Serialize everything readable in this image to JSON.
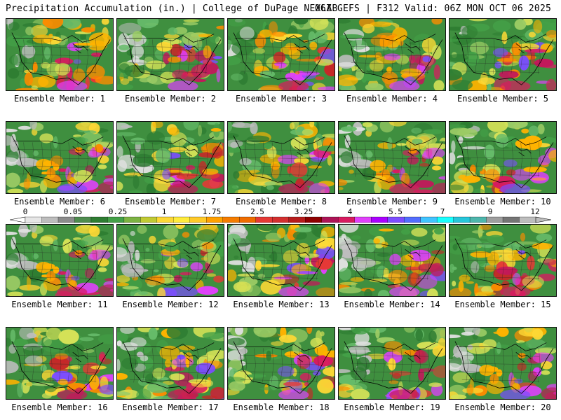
{
  "header": {
    "left": "Precipitation Accumulation (in.) | College of DuPage NEXLAB",
    "right": "06Z GEFS | F312 Valid: 06Z MON OCT 06 2025"
  },
  "members": [
    "Ensemble Member: 1",
    "Ensemble Member: 2",
    "Ensemble Member: 3",
    "Ensemble Member: 4",
    "Ensemble Member: 5",
    "Ensemble Member: 6",
    "Ensemble Member: 7",
    "Ensemble Member: 8",
    "Ensemble Member: 9",
    "Ensemble Member: 10",
    "Ensemble Member: 11",
    "Ensemble Member: 12",
    "Ensemble Member: 13",
    "Ensemble Member: 14",
    "Ensemble Member: 15",
    "Ensemble Member: 16",
    "Ensemble Member: 17",
    "Ensemble Member: 18",
    "Ensemble Member: 19",
    "Ensemble Member: 20"
  ],
  "colorbar": {
    "labels": [
      "0",
      "0.05",
      "0.25",
      "1",
      "1.75",
      "2.5",
      "3.25",
      "4",
      "5.5",
      "7",
      "9",
      "12"
    ],
    "colors": [
      "#e6e6e6",
      "#bdbdbd",
      "#8c8c8c",
      "#4e8c4e",
      "#2e7d32",
      "#43a047",
      "#7cb342",
      "#c0ca33",
      "#fdd835",
      "#ffeb3b",
      "#ffca28",
      "#ffa000",
      "#f57c00",
      "#ef6c00",
      "#e53935",
      "#d32f2f",
      "#b71c1c",
      "#8e0000",
      "#ad1457",
      "#d81b60",
      "#e040fb",
      "#aa00ff",
      "#7c4dff",
      "#536dfe",
      "#40c4ff",
      "#18ffff",
      "#26c6da",
      "#4db6ac",
      "#9e9e9e",
      "#757575",
      "#bdbdbd"
    ]
  }
}
